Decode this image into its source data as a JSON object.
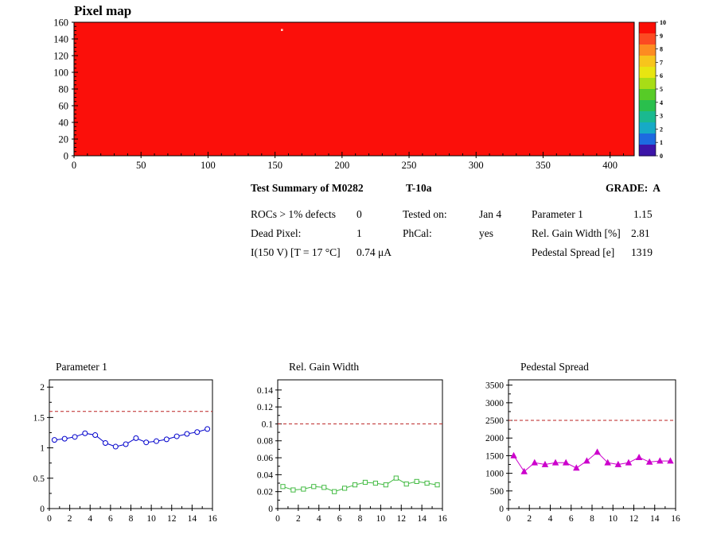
{
  "summary": {
    "title": "Test Summary of M0282",
    "module_type": "T-10a",
    "grade_label": "GRADE:  A",
    "rows": [
      {
        "label": "ROCs > 1% defects",
        "value": "0"
      },
      {
        "label": "Dead Pixel:",
        "value": "1"
      },
      {
        "label": "I(150 V) [T = 17 °C]",
        "value": "0.74 μA"
      }
    ],
    "mid": [
      {
        "label": "Tested on:",
        "value": "Jan 4"
      },
      {
        "label": "PhCal:",
        "value": "yes"
      }
    ],
    "right": [
      {
        "label": "Parameter 1",
        "value": "1.15"
      },
      {
        "label": "Rel. Gain Width [%]",
        "value": "2.81"
      },
      {
        "label": "Pedestal Spread [e]",
        "value": "1319"
      }
    ]
  },
  "chart_data": [
    {
      "type": "heatmap",
      "title": "Pixel map",
      "x_range": [
        0,
        418
      ],
      "y_range": [
        0,
        160
      ],
      "x_ticks": [
        0,
        50,
        100,
        150,
        200,
        250,
        300,
        350,
        400
      ],
      "y_ticks": [
        0,
        20,
        40,
        60,
        80,
        100,
        120,
        140,
        160
      ],
      "uniform_value": 10,
      "fill_color": "#fb0f0a",
      "dead_pixel": {
        "x": 155,
        "y": 151
      },
      "colorbar": {
        "range": [
          0,
          10
        ],
        "labels": [
          "10",
          "9",
          "8",
          "7",
          "6",
          "5",
          "4",
          "3",
          "2",
          "1",
          "0"
        ],
        "colors_top_to_bottom": [
          "#fa0e06",
          "#fc4a22",
          "#fd8c21",
          "#f7c51c",
          "#e8e511",
          "#a8dd16",
          "#57cb27",
          "#2abf4d",
          "#1ab98f",
          "#16aac6",
          "#1d6ae0",
          "#3c14a8"
        ]
      }
    },
    {
      "type": "line",
      "title": "Parameter 1",
      "x": [
        0.5,
        1.5,
        2.5,
        3.5,
        4.5,
        5.5,
        6.5,
        7.5,
        8.5,
        9.5,
        10.5,
        11.5,
        12.5,
        13.5,
        14.5,
        15.5
      ],
      "values": [
        1.13,
        1.15,
        1.18,
        1.24,
        1.21,
        1.08,
        1.02,
        1.06,
        1.16,
        1.09,
        1.11,
        1.14,
        1.19,
        1.23,
        1.26,
        1.31
      ],
      "marker": "circle",
      "color": "#0000cc",
      "mean_line": 1.6,
      "mean_line_color": "#bb2222",
      "xlim": [
        0,
        16
      ],
      "ylim": [
        0,
        2.12
      ],
      "xticks": [
        0,
        2,
        4,
        6,
        8,
        10,
        12,
        14,
        16
      ],
      "yticks": [
        0,
        0.5,
        1,
        1.5,
        2
      ],
      "ytick_labels": [
        "0",
        "0.5",
        "1",
        "1.5",
        "2"
      ]
    },
    {
      "type": "line",
      "title": "Rel. Gain Width",
      "x": [
        0.5,
        1.5,
        2.5,
        3.5,
        4.5,
        5.5,
        6.5,
        7.5,
        8.5,
        9.5,
        10.5,
        11.5,
        12.5,
        13.5,
        14.5,
        15.5
      ],
      "values": [
        0.026,
        0.022,
        0.023,
        0.026,
        0.025,
        0.02,
        0.024,
        0.028,
        0.031,
        0.03,
        0.028,
        0.036,
        0.029,
        0.032,
        0.03,
        0.028
      ],
      "marker": "square",
      "color": "#44bb44",
      "mean_line": 0.1,
      "mean_line_color": "#bb2222",
      "xlim": [
        0,
        16
      ],
      "ylim": [
        0,
        0.152
      ],
      "xticks": [
        0,
        2,
        4,
        6,
        8,
        10,
        12,
        14,
        16
      ],
      "yticks": [
        0,
        0.02,
        0.04,
        0.06,
        0.08,
        0.1,
        0.12,
        0.14
      ],
      "ytick_labels": [
        "0",
        "0.02",
        "0.04",
        "0.06",
        "0.08",
        "0.1",
        "0.12",
        "0.14"
      ]
    },
    {
      "type": "line",
      "title": "Pedestal Spread",
      "x": [
        0.5,
        1.5,
        2.5,
        3.5,
        4.5,
        5.5,
        6.5,
        7.5,
        8.5,
        9.5,
        10.5,
        11.5,
        12.5,
        13.5,
        14.5,
        15.5
      ],
      "values": [
        1500,
        1050,
        1300,
        1250,
        1300,
        1300,
        1150,
        1350,
        1600,
        1300,
        1250,
        1300,
        1450,
        1320,
        1350,
        1350
      ],
      "marker": "triangle",
      "color": "#cc00cc",
      "mean_line": 2500,
      "mean_line_color": "#bb2222",
      "xlim": [
        0,
        16
      ],
      "ylim": [
        0,
        3650
      ],
      "xticks": [
        0,
        2,
        4,
        6,
        8,
        10,
        12,
        14,
        16
      ],
      "yticks": [
        0,
        500,
        1000,
        1500,
        2000,
        2500,
        3000,
        3500
      ],
      "ytick_labels": [
        "0",
        "500",
        "1000",
        "1500",
        "2000",
        "2500",
        "3000",
        "3500"
      ]
    }
  ]
}
